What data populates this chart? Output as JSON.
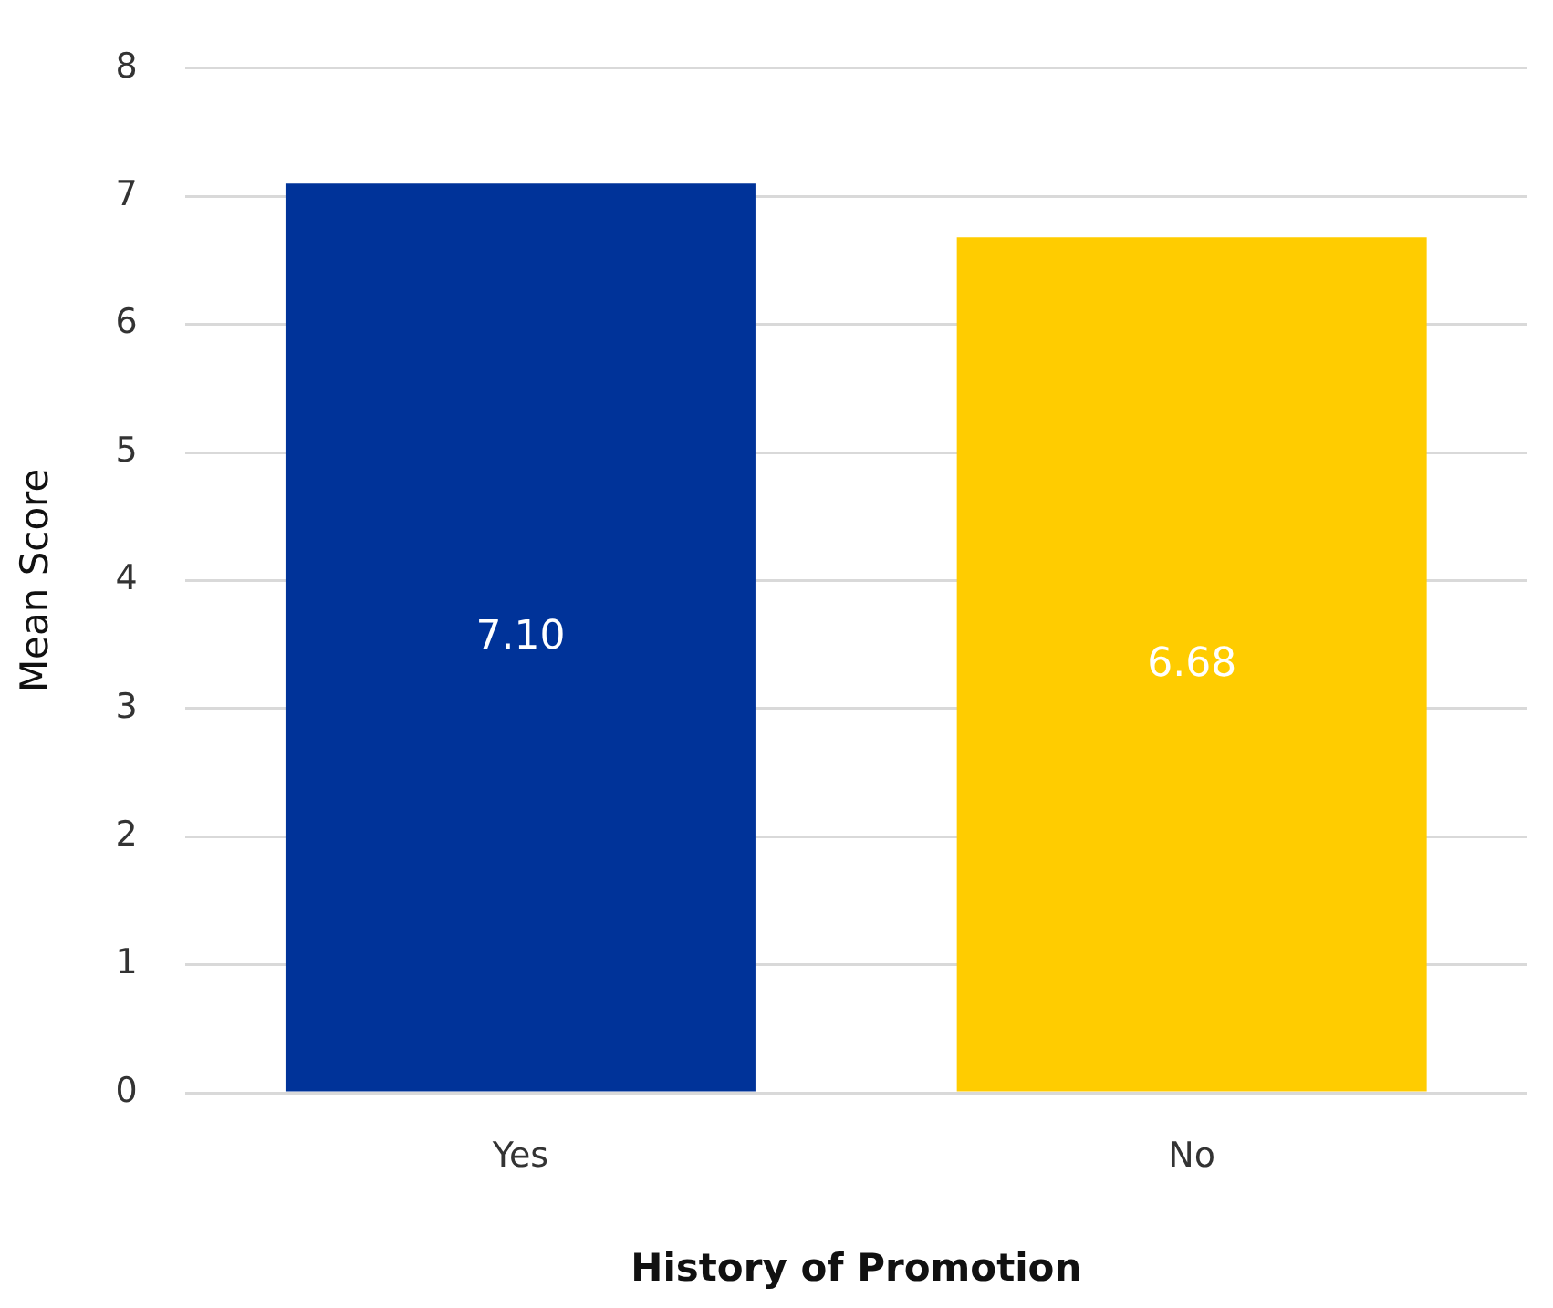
{
  "chart_data": {
    "type": "bar",
    "xlabel": "History of Promotion",
    "ylabel": "Mean Score",
    "categories": [
      "Yes",
      "No"
    ],
    "values": [
      7.1,
      6.68
    ],
    "value_labels": [
      "7.10",
      "6.68"
    ],
    "colors": [
      "#003399",
      "#ffcc00"
    ],
    "ylim": [
      0,
      8
    ],
    "yticks": [
      0,
      1,
      2,
      3,
      4,
      5,
      6,
      7,
      8
    ],
    "grid": "y",
    "legend": false
  }
}
